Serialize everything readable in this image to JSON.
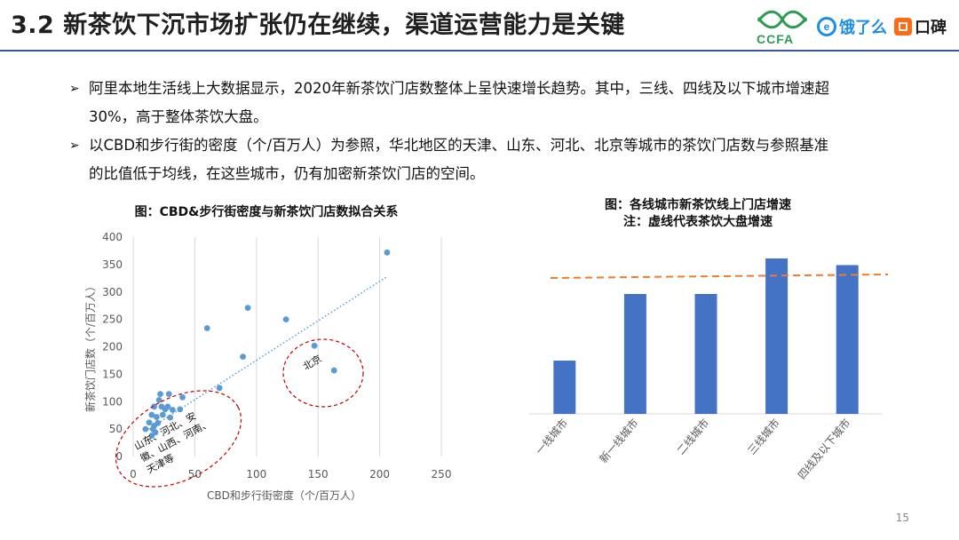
{
  "header": {
    "title": "3.2 新茶饮下沉市场扩张仍在继续，渠道运营能力是关键",
    "logos": [
      {
        "name": "ccfa",
        "text": "CCFA",
        "color": "#2e9b53"
      },
      {
        "name": "eleme",
        "text": "饿了么",
        "mark": "e",
        "color": "#1c8ee6"
      },
      {
        "name": "koubei",
        "text": "口碑",
        "color": "#ff6a13"
      }
    ]
  },
  "bullets": [
    {
      "line1": "阿里本地生活线上大数据显示，2020年新茶饮门店数整体上呈快速增长趋势。其中，三线、四线及以下城市增速超",
      "line2": "30%，高于整体茶饮大盘。"
    },
    {
      "line1": "以CBD和步行街的密度（个/百万人）为参照，华北地区的天津、山东、河北、北京等城市的茶饮门店数与参照基准",
      "line2": "的比值低于均线，在这些城市，仍有加密新茶饮门店的空间。"
    }
  ],
  "bullet_arrow": "➢",
  "page_number": "15",
  "chart_data": [
    {
      "type": "scatter",
      "title": "图：CBD&步行街密度与新茶饮门店数拟合关系",
      "xlabel": "CBD和步行街密度（个/百万人）",
      "ylabel": "新茶饮门店数（个/百万人）",
      "xlim": [
        0,
        250
      ],
      "ylim": [
        0,
        400
      ],
      "xticks": [
        "0",
        "50",
        "100",
        "150",
        "200",
        "250"
      ],
      "yticks": [
        "0",
        "50",
        "100",
        "150",
        "200",
        "250",
        "300",
        "350",
        "400"
      ],
      "grid": "vertical",
      "point_color": "#5b9bd5",
      "points": [
        {
          "x": 206,
          "y": 372
        },
        {
          "x": 93,
          "y": 271
        },
        {
          "x": 124,
          "y": 250
        },
        {
          "x": 60,
          "y": 234
        },
        {
          "x": 147,
          "y": 202
        },
        {
          "x": 89,
          "y": 182
        },
        {
          "x": 163,
          "y": 157
        },
        {
          "x": 70,
          "y": 125
        },
        {
          "x": 22,
          "y": 114
        },
        {
          "x": 29,
          "y": 114
        },
        {
          "x": 21,
          "y": 103
        },
        {
          "x": 40,
          "y": 108
        },
        {
          "x": 17,
          "y": 91
        },
        {
          "x": 23,
          "y": 91
        },
        {
          "x": 28,
          "y": 91
        },
        {
          "x": 26,
          "y": 86
        },
        {
          "x": 32,
          "y": 85
        },
        {
          "x": 38,
          "y": 86
        },
        {
          "x": 15,
          "y": 76
        },
        {
          "x": 19,
          "y": 72
        },
        {
          "x": 24,
          "y": 76
        },
        {
          "x": 30,
          "y": 71
        },
        {
          "x": 13,
          "y": 62
        },
        {
          "x": 17,
          "y": 56
        },
        {
          "x": 20,
          "y": 61
        },
        {
          "x": 10,
          "y": 50
        },
        {
          "x": 16,
          "y": 50
        },
        {
          "x": 18,
          "y": 44
        },
        {
          "x": 15,
          "y": 38
        }
      ],
      "trendline": {
        "x": [
          10,
          206
        ],
        "y": [
          46,
          328
        ],
        "style": "dotted",
        "color": "#5b9bd5"
      },
      "annotations": [
        {
          "text": "北京",
          "style": "dashed-ellipse",
          "color": "#c00000"
        },
        {
          "text": "山东、河北、安徽、山西、河南、天津等",
          "lines": [
            "山东、河北、安",
            "徽、山西、河南、",
            "天津等"
          ],
          "style": "dashed-ellipse",
          "color": "#c00000"
        }
      ]
    },
    {
      "type": "bar",
      "title": "图：各线城市新茶饮线上门店增速",
      "subtitle": "注：虚线代表茶饮大盘增速",
      "categories": [
        "一线城市",
        "新一线城市",
        "二线城市",
        "三线城市",
        "四线及以下城市"
      ],
      "values": [
        0.12,
        0.27,
        0.27,
        0.35,
        0.335
      ],
      "ylim": [
        0,
        0.4
      ],
      "bar_color": "#4472c4",
      "reference_line": {
        "value": 0.31,
        "style": "dashed",
        "color": "#ed7d31"
      }
    }
  ]
}
